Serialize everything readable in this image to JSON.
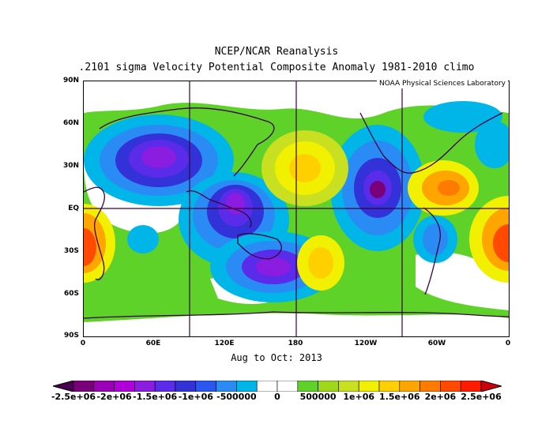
{
  "title_line1": "NCEP/NCAR Reanalysis",
  "title_line2": ".2101 sigma Velocity Potential  Composite Anomaly 1981-2010 climo",
  "credit": "NOAA Physical Sciences Laboratory",
  "date_label": "Aug to Oct: 2013",
  "lat_labels": [
    "90N",
    "60N",
    "30N",
    "EQ",
    "30S",
    "60S",
    "90S"
  ],
  "lon_labels": [
    "0",
    "60E",
    "120E",
    "180",
    "120W",
    "60W",
    "0"
  ],
  "colorbar": {
    "labels": [
      "-2.5e+06",
      "-2e+06",
      "-1.5e+06",
      "-1e+06",
      "-500000",
      "0",
      "500000",
      "1e+06",
      "1.5e+06",
      "2e+06",
      "2.5e+06"
    ],
    "colors": [
      "#7a0079",
      "#9a00b5",
      "#b000d8",
      "#8a1de0",
      "#5a2be8",
      "#3232d8",
      "#2a57f0",
      "#2b8bf5",
      "#00b5e8",
      "#ffffff",
      "#ffffff",
      "#5fd22a",
      "#9fd81a",
      "#c8e020",
      "#f0f000",
      "#ffd000",
      "#ffa500",
      "#ff7a00",
      "#ff4a00",
      "#ff1a00"
    ],
    "left_arrow_color": "#4a0050",
    "right_arrow_color": "#d0000a"
  }
}
